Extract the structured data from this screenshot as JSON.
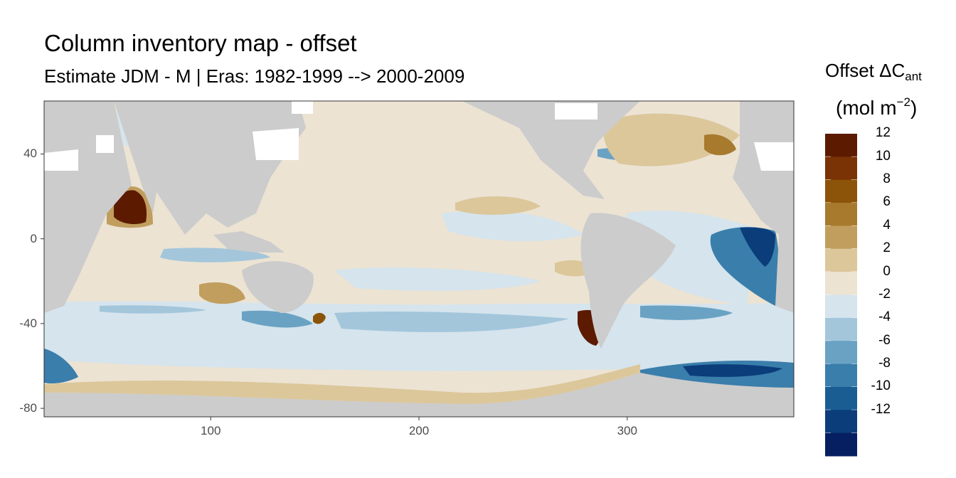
{
  "title": "Column inventory map - offset",
  "subtitle": "Estimate JDM - M | Eras: 1982-1999 --> 2000-2009",
  "legend": {
    "title_main": "Offset ΔC",
    "title_sub": "ant",
    "unit_open": "(mol m",
    "unit_sup": "−2",
    "unit_close": ")",
    "bins": [
      {
        "color": "#5c1a00",
        "label": "12"
      },
      {
        "color": "#7a3304",
        "label": "10"
      },
      {
        "color": "#8c5408",
        "label": "8"
      },
      {
        "color": "#a77a2e",
        "label": "6"
      },
      {
        "color": "#c19e5e",
        "label": "4"
      },
      {
        "color": "#dcc79b",
        "label": "2"
      },
      {
        "color": "#ece3d3",
        "label": "0"
      },
      {
        "color": "#d5e4ed",
        "label": "-2"
      },
      {
        "color": "#a3c6db",
        "label": "-4"
      },
      {
        "color": "#6aa2c3",
        "label": "-6"
      },
      {
        "color": "#3a7eab",
        "label": "-8"
      },
      {
        "color": "#1a5d93",
        "label": "-10"
      },
      {
        "color": "#0b3d7a",
        "label": "-12"
      },
      {
        "color": "#051f61",
        "label": ""
      }
    ]
  },
  "axes": {
    "x_ticks": [
      {
        "v": 100,
        "label": "100"
      },
      {
        "v": 200,
        "label": "200"
      },
      {
        "v": 300,
        "label": "300"
      }
    ],
    "y_ticks": [
      {
        "v": 40,
        "label": "40"
      },
      {
        "v": 0,
        "label": "0"
      },
      {
        "v": -40,
        "label": "-40"
      },
      {
        "v": -80,
        "label": "-80"
      }
    ],
    "xlim": [
      20,
      380
    ],
    "ylim": [
      -84,
      65
    ]
  },
  "colors": {
    "land": "#cccccc",
    "background_ocean": "#ece3d3",
    "no_data": "#ffffff"
  }
}
